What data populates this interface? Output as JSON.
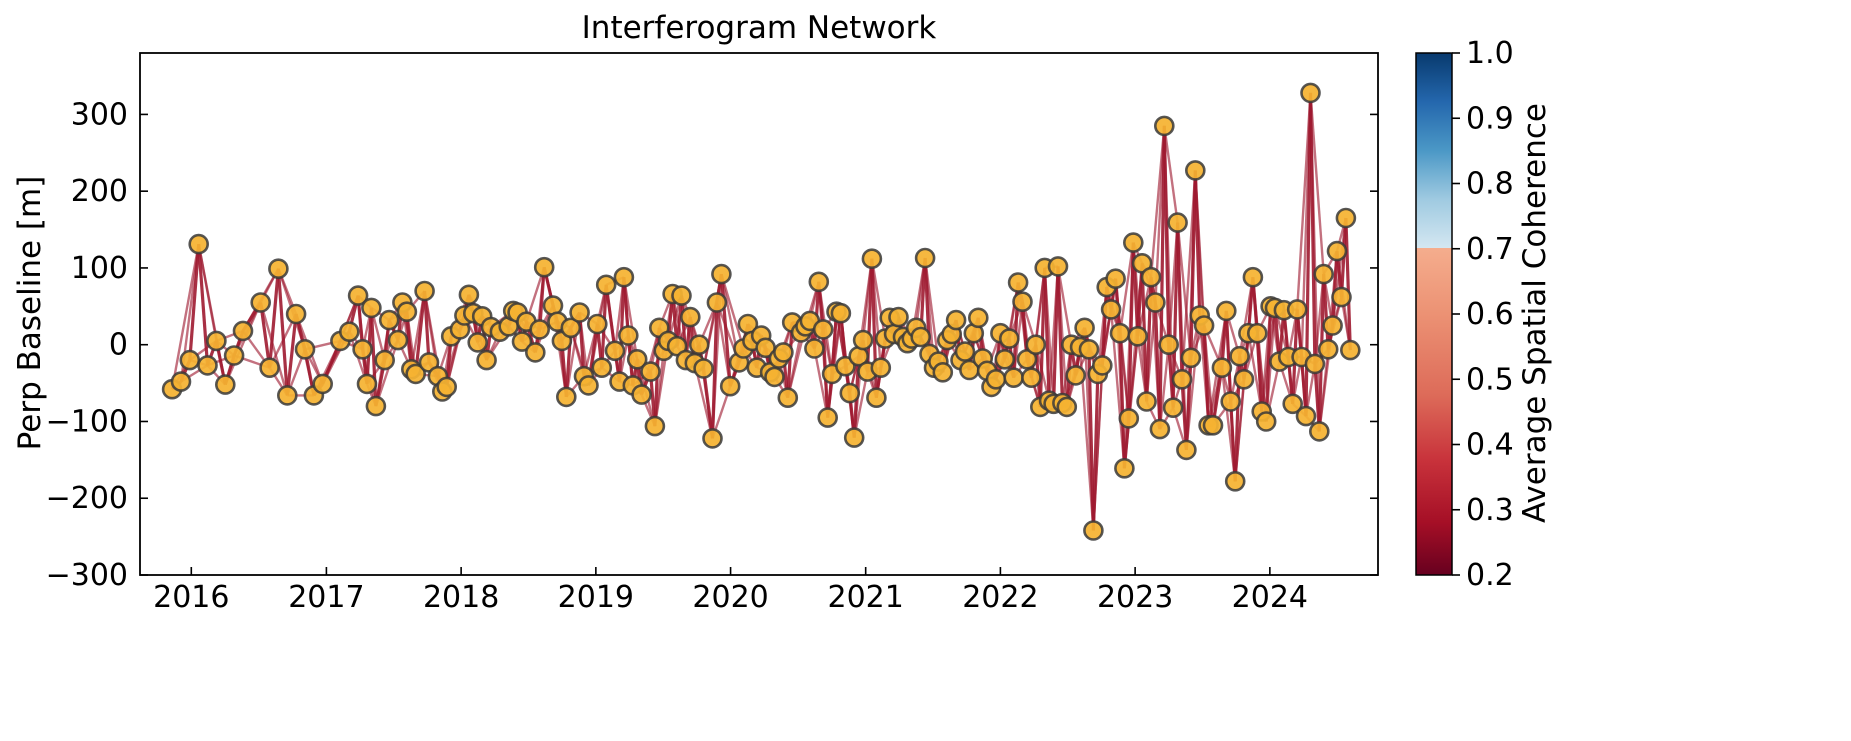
{
  "chart_data": {
    "type": "scatter",
    "title": "Interferogram Network",
    "xlabel": "",
    "ylabel": "Perp Baseline [m]",
    "x_ticks": [
      "2016",
      "2017",
      "2018",
      "2019",
      "2020",
      "2021",
      "2022",
      "2023",
      "2024"
    ],
    "y_ticks": [
      "300",
      "200",
      "100",
      "0",
      "−100",
      "−200",
      "−300"
    ],
    "y_tick_values": [
      300,
      200,
      100,
      0,
      -100,
      -200,
      -300
    ],
    "xlim": [
      "2015-08-15",
      "2024-10-20"
    ],
    "ylim": [
      -300,
      380
    ],
    "grid": false,
    "marker_color": "#f5b332",
    "marker_edge_color": "#3a3a3a",
    "line_color": "#9e1a30",
    "colorbar": {
      "label": "Average Spatial Coherence",
      "range": [
        0.2,
        1.0
      ],
      "ticks": [
        "1.0",
        "0.9",
        "0.8",
        "0.7",
        "0.6",
        "0.5",
        "0.4",
        "0.3",
        "0.2"
      ],
      "tick_values": [
        1.0,
        0.9,
        0.8,
        0.7,
        0.6,
        0.5,
        0.4,
        0.3,
        0.2
      ],
      "colormap": "RdBu"
    },
    "acquisitions": [
      [
        "2015-11-10",
        -58
      ],
      [
        "2015-12-04",
        -48
      ],
      [
        "2015-12-28",
        -20
      ],
      [
        "2016-01-21",
        131
      ],
      [
        "2016-02-14",
        -27
      ],
      [
        "2016-03-09",
        5
      ],
      [
        "2016-04-02",
        -52
      ],
      [
        "2016-04-26",
        -14
      ],
      [
        "2016-05-20",
        18
      ],
      [
        "2016-07-07",
        55
      ],
      [
        "2016-07-31",
        -30
      ],
      [
        "2016-08-24",
        99
      ],
      [
        "2016-09-17",
        -66
      ],
      [
        "2016-10-11",
        40
      ],
      [
        "2016-11-04",
        -6
      ],
      [
        "2016-11-28",
        -66
      ],
      [
        "2016-12-22",
        -51
      ],
      [
        "2017-02-08",
        5
      ],
      [
        "2017-03-04",
        17
      ],
      [
        "2017-03-28",
        64
      ],
      [
        "2017-04-09",
        -6
      ],
      [
        "2017-04-21",
        -51
      ],
      [
        "2017-05-03",
        48
      ],
      [
        "2017-05-15",
        -80
      ],
      [
        "2017-06-08",
        -20
      ],
      [
        "2017-06-20",
        32
      ],
      [
        "2017-07-14",
        6
      ],
      [
        "2017-07-26",
        55
      ],
      [
        "2017-08-07",
        43
      ],
      [
        "2017-08-19",
        -32
      ],
      [
        "2017-08-31",
        -38
      ],
      [
        "2017-09-24",
        70
      ],
      [
        "2017-10-06",
        -23
      ],
      [
        "2017-10-30",
        -41
      ],
      [
        "2017-11-11",
        -61
      ],
      [
        "2017-11-23",
        -55
      ],
      [
        "2017-12-05",
        11
      ],
      [
        "2017-12-29",
        20
      ],
      [
        "2018-01-10",
        38
      ],
      [
        "2018-01-22",
        65
      ],
      [
        "2018-02-03",
        41
      ],
      [
        "2018-02-15",
        3
      ],
      [
        "2018-02-27",
        37
      ],
      [
        "2018-03-11",
        -20
      ],
      [
        "2018-03-23",
        23
      ],
      [
        "2018-04-16",
        17
      ],
      [
        "2018-05-10",
        24
      ],
      [
        "2018-05-22",
        44
      ],
      [
        "2018-06-03",
        42
      ],
      [
        "2018-06-15",
        4
      ],
      [
        "2018-06-27",
        30
      ],
      [
        "2018-07-21",
        -10
      ],
      [
        "2018-08-02",
        20
      ],
      [
        "2018-08-14",
        101
      ],
      [
        "2018-09-07",
        51
      ],
      [
        "2018-09-19",
        30
      ],
      [
        "2018-10-01",
        5
      ],
      [
        "2018-10-13",
        -68
      ],
      [
        "2018-10-25",
        22
      ],
      [
        "2018-11-18",
        42
      ],
      [
        "2018-11-30",
        -41
      ],
      [
        "2018-12-12",
        -53
      ],
      [
        "2019-01-05",
        27
      ],
      [
        "2019-01-17",
        -30
      ],
      [
        "2019-01-29",
        78
      ],
      [
        "2019-02-22",
        -8
      ],
      [
        "2019-03-06",
        -48
      ],
      [
        "2019-03-18",
        88
      ],
      [
        "2019-03-30",
        12
      ],
      [
        "2019-04-11",
        -53
      ],
      [
        "2019-04-23",
        -19
      ],
      [
        "2019-05-05",
        -65
      ],
      [
        "2019-05-29",
        -35
      ],
      [
        "2019-06-10",
        -106
      ],
      [
        "2019-06-22",
        22
      ],
      [
        "2019-07-04",
        -8
      ],
      [
        "2019-07-16",
        5
      ],
      [
        "2019-07-28",
        66
      ],
      [
        "2019-08-09",
        -2
      ],
      [
        "2019-08-21",
        64
      ],
      [
        "2019-09-02",
        -20
      ],
      [
        "2019-09-14",
        36
      ],
      [
        "2019-09-26",
        -24
      ],
      [
        "2019-10-08",
        0
      ],
      [
        "2019-10-20",
        -31
      ],
      [
        "2019-11-13",
        -122
      ],
      [
        "2019-11-25",
        55
      ],
      [
        "2019-12-07",
        92
      ],
      [
        "2019-12-31",
        -54
      ],
      [
        "2020-01-24",
        -23
      ],
      [
        "2020-02-05",
        -5
      ],
      [
        "2020-02-17",
        27
      ],
      [
        "2020-02-29",
        5
      ],
      [
        "2020-03-12",
        -30
      ],
      [
        "2020-03-24",
        12
      ],
      [
        "2020-04-05",
        -4
      ],
      [
        "2020-04-17",
        -36
      ],
      [
        "2020-04-29",
        -42
      ],
      [
        "2020-05-11",
        -18
      ],
      [
        "2020-05-23",
        -10
      ],
      [
        "2020-06-04",
        -69
      ],
      [
        "2020-06-16",
        29
      ],
      [
        "2020-07-10",
        16
      ],
      [
        "2020-07-22",
        24
      ],
      [
        "2020-08-03",
        31
      ],
      [
        "2020-08-15",
        -5
      ],
      [
        "2020-08-27",
        82
      ],
      [
        "2020-09-08",
        20
      ],
      [
        "2020-09-20",
        -95
      ],
      [
        "2020-10-02",
        -38
      ],
      [
        "2020-10-14",
        43
      ],
      [
        "2020-10-26",
        41
      ],
      [
        "2020-11-07",
        -28
      ],
      [
        "2020-11-19",
        -63
      ],
      [
        "2020-12-01",
        -121
      ],
      [
        "2020-12-13",
        -15
      ],
      [
        "2020-12-25",
        6
      ],
      [
        "2021-01-06",
        -35
      ],
      [
        "2021-01-18",
        112
      ],
      [
        "2021-01-30",
        -69
      ],
      [
        "2021-02-11",
        -30
      ],
      [
        "2021-02-23",
        8
      ],
      [
        "2021-03-07",
        35
      ],
      [
        "2021-03-19",
        14
      ],
      [
        "2021-03-31",
        36
      ],
      [
        "2021-04-12",
        10
      ],
      [
        "2021-04-24",
        2
      ],
      [
        "2021-05-06",
        8
      ],
      [
        "2021-05-18",
        22
      ],
      [
        "2021-05-30",
        10
      ],
      [
        "2021-06-11",
        113
      ],
      [
        "2021-06-23",
        -12
      ],
      [
        "2021-07-05",
        -30
      ],
      [
        "2021-07-17",
        -22
      ],
      [
        "2021-07-29",
        -36
      ],
      [
        "2021-08-10",
        6
      ],
      [
        "2021-08-22",
        14
      ],
      [
        "2021-09-03",
        32
      ],
      [
        "2021-09-15",
        -20
      ],
      [
        "2021-09-27",
        -9
      ],
      [
        "2021-10-09",
        -33
      ],
      [
        "2021-10-21",
        15
      ],
      [
        "2021-11-02",
        35
      ],
      [
        "2021-11-14",
        -18
      ],
      [
        "2021-11-26",
        -34
      ],
      [
        "2021-12-08",
        -55
      ],
      [
        "2021-12-20",
        -45
      ],
      [
        "2022-01-01",
        15
      ],
      [
        "2022-01-13",
        -19
      ],
      [
        "2022-01-25",
        8
      ],
      [
        "2022-02-06",
        -43
      ],
      [
        "2022-02-18",
        81
      ],
      [
        "2022-03-02",
        56
      ],
      [
        "2022-03-14",
        -19
      ],
      [
        "2022-03-26",
        -43
      ],
      [
        "2022-04-07",
        0
      ],
      [
        "2022-04-19",
        -81
      ],
      [
        "2022-05-01",
        100
      ],
      [
        "2022-05-13",
        -73
      ],
      [
        "2022-05-25",
        -77
      ],
      [
        "2022-06-06",
        102
      ],
      [
        "2022-06-18",
        -76
      ],
      [
        "2022-06-30",
        -81
      ],
      [
        "2022-07-12",
        0
      ],
      [
        "2022-07-24",
        -40
      ],
      [
        "2022-08-05",
        -3
      ],
      [
        "2022-08-17",
        22
      ],
      [
        "2022-08-29",
        -6
      ],
      [
        "2022-09-10",
        -242
      ],
      [
        "2022-09-22",
        -38
      ],
      [
        "2022-10-04",
        -27
      ],
      [
        "2022-10-16",
        75
      ],
      [
        "2022-10-28",
        46
      ],
      [
        "2022-11-09",
        86
      ],
      [
        "2022-11-21",
        15
      ],
      [
        "2022-12-03",
        -161
      ],
      [
        "2022-12-15",
        -96
      ],
      [
        "2022-12-27",
        133
      ],
      [
        "2023-01-08",
        11
      ],
      [
        "2023-01-20",
        106
      ],
      [
        "2023-02-01",
        -74
      ],
      [
        "2023-02-13",
        88
      ],
      [
        "2023-02-25",
        55
      ],
      [
        "2023-03-09",
        -110
      ],
      [
        "2023-03-21",
        285
      ],
      [
        "2023-04-02",
        0
      ],
      [
        "2023-04-14",
        -82
      ],
      [
        "2023-04-26",
        159
      ],
      [
        "2023-05-08",
        -45
      ],
      [
        "2023-05-20",
        -137
      ],
      [
        "2023-06-01",
        -17
      ],
      [
        "2023-06-13",
        227
      ],
      [
        "2023-06-25",
        38
      ],
      [
        "2023-07-07",
        25
      ],
      [
        "2023-07-19",
        -105
      ],
      [
        "2023-07-31",
        -105
      ],
      [
        "2023-08-24",
        -30
      ],
      [
        "2023-09-05",
        44
      ],
      [
        "2023-09-17",
        -74
      ],
      [
        "2023-09-29",
        -178
      ],
      [
        "2023-10-11",
        -15
      ],
      [
        "2023-10-23",
        -45
      ],
      [
        "2023-11-04",
        15
      ],
      [
        "2023-11-16",
        88
      ],
      [
        "2023-11-28",
        15
      ],
      [
        "2023-12-10",
        -87
      ],
      [
        "2023-12-22",
        -100
      ],
      [
        "2024-01-03",
        50
      ],
      [
        "2024-01-15",
        48
      ],
      [
        "2024-01-27",
        -22
      ],
      [
        "2024-02-08",
        45
      ],
      [
        "2024-02-20",
        -16
      ],
      [
        "2024-03-03",
        -77
      ],
      [
        "2024-03-15",
        46
      ],
      [
        "2024-03-27",
        -16
      ],
      [
        "2024-04-08",
        -93
      ],
      [
        "2024-04-20",
        328
      ],
      [
        "2024-05-02",
        -25
      ],
      [
        "2024-05-14",
        -113
      ],
      [
        "2024-05-26",
        92
      ],
      [
        "2024-06-07",
        -6
      ],
      [
        "2024-06-19",
        25
      ],
      [
        "2024-07-01",
        122
      ],
      [
        "2024-07-13",
        62
      ],
      [
        "2024-07-25",
        165
      ],
      [
        "2024-08-06",
        -7
      ]
    ],
    "connections_per_acquisition": 3
  }
}
